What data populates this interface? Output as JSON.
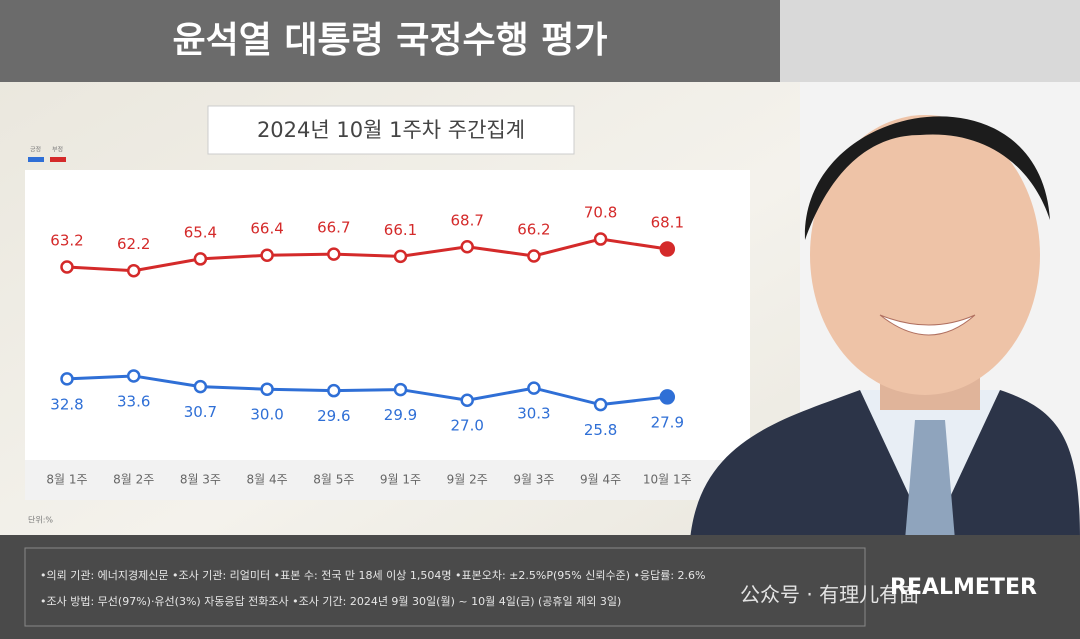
{
  "chart_data": {
    "type": "line",
    "title": "윤석열 대통령 국정수행 평가",
    "subtitle": "2024년 10월 1주차 주간집계",
    "unit": "단위:%",
    "categories": [
      "8월 1주",
      "8월 2주",
      "8월 3주",
      "8월 4주",
      "8월 5주",
      "9월 1주",
      "9월 2주",
      "9월 3주",
      "9월 4주",
      "10월 1주"
    ],
    "series": [
      {
        "name": "긍정",
        "color": "#2f6fd6",
        "values": [
          32.8,
          33.6,
          30.7,
          30.0,
          29.6,
          29.9,
          27.0,
          30.3,
          25.8,
          27.9
        ],
        "value_labels": [
          "32.8",
          "33.6",
          "30.7",
          "30.0",
          "29.6",
          "29.9",
          "27.0",
          "30.3",
          "25.8",
          "27.9"
        ]
      },
      {
        "name": "부정",
        "color": "#d42a2a",
        "values": [
          63.2,
          62.2,
          65.4,
          66.4,
          66.7,
          66.1,
          68.7,
          66.2,
          70.8,
          68.1
        ],
        "value_labels": [
          "63.2",
          "62.2",
          "65.4",
          "66.4",
          "66.7",
          "66.1",
          "68.7",
          "66.2",
          "70.8",
          "68.1"
        ]
      }
    ],
    "notes": [
      "•의뢰 기관: 에너지경제신문 •조사 기관: 리얼미터 •표본 수: 전국 만 18세 이상 1,504명 •표본오차: ±2.5%P(95% 신뢰수준) •응답률: 2.6%",
      "•조사 방법: 무선(97%)·유선(3%) 자동응답 전화조사 •조사 기간: 2024년 9월 30일(월) ~ 10월 4일(금) (공휴일 제외 3일)"
    ],
    "logo": "REALMETER",
    "watermark": "公众号 · 有理儿有面"
  }
}
